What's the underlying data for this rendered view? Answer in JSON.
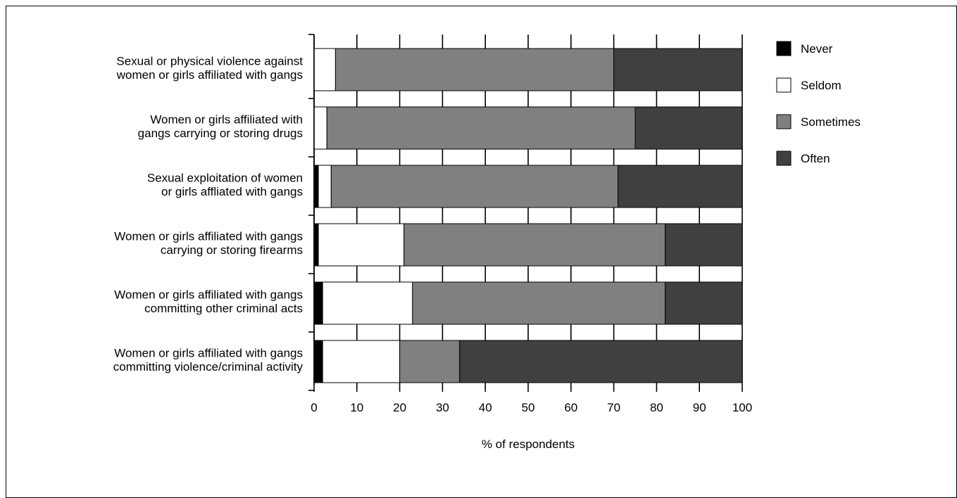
{
  "chart_data": {
    "type": "bar",
    "orientation": "horizontal",
    "stacked": true,
    "title": "",
    "xlabel": "% of respondents",
    "ylabel": "",
    "xlim": [
      0,
      100
    ],
    "xticks": [
      0,
      10,
      20,
      30,
      40,
      50,
      60,
      70,
      80,
      90,
      100
    ],
    "grid": false,
    "legend_position": "right",
    "categories": [
      [
        "Sexual or physical violence against",
        "women or girls affiliated with gangs"
      ],
      [
        "Women or girls affiliated with",
        "gangs carrying or storing drugs"
      ],
      [
        "Sexual exploitation of women",
        "or girls affliated with gangs"
      ],
      [
        "Women or girls affiliated with gangs",
        "carrying or storing firearms"
      ],
      [
        "Women or girls affiliated with gangs",
        "committing other criminal acts"
      ],
      [
        "Women or girls affiliated with gangs",
        "committing violence/criminal activity"
      ]
    ],
    "series": [
      {
        "name": "Never",
        "color": "#000000",
        "values": [
          0,
          0,
          1,
          1,
          2,
          2
        ]
      },
      {
        "name": "Seldom",
        "color": "#ffffff",
        "values": [
          5,
          3,
          3,
          20,
          21,
          18
        ]
      },
      {
        "name": "Sometimes",
        "color": "#808080",
        "values": [
          65,
          72,
          67,
          61,
          59,
          14
        ]
      },
      {
        "name": "Often",
        "color": "#404040",
        "values": [
          30,
          25,
          29,
          18,
          18,
          66
        ]
      }
    ]
  }
}
